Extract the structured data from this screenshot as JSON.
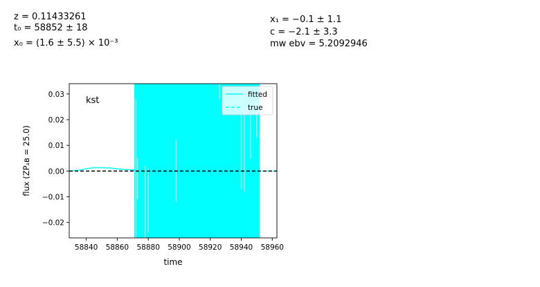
{
  "params": {
    "z": "z = 0.11433261",
    "t0": "t₀ = 58852 ± 18",
    "x0": "x₀ = (1.6 ± 5.5) × 10⁻³",
    "x1": "x₁ = −0.1 ± 1.1",
    "c": "c = −2.1 ± 3.3",
    "mwebv": "mw ebv = 5.2092946"
  },
  "chart_data": {
    "type": "line",
    "band_label": "kst",
    "xlabel": "time",
    "ylabel": "flux (ZPₐʙ = 25.0)",
    "xlim": [
      58829,
      58963
    ],
    "ylim": [
      -0.026,
      0.034
    ],
    "xticks": [
      58840,
      58860,
      58880,
      58900,
      58920,
      58940,
      58960
    ],
    "yticks": [
      -0.02,
      -0.01,
      0.0,
      0.01,
      0.02,
      0.03
    ],
    "ytick_labels": [
      "−0.02",
      "−0.01",
      "0.00",
      "0.01",
      "0.02",
      "0.03"
    ],
    "legend": {
      "placement": "top-right",
      "entries": [
        "fitted",
        "true"
      ]
    },
    "colors": {
      "model": "#00ffff",
      "zero_line": "#000000"
    },
    "zero_line": 0.0,
    "uncertainty_band": {
      "x_start": 58871,
      "x_end": 58952,
      "color": "#00ffff"
    },
    "series": [
      {
        "name": "fitted",
        "style": "solid",
        "x": [
          58829,
          58835,
          58840,
          58845,
          58850,
          58855,
          58860,
          58865,
          58871
        ],
        "y": [
          0.0,
          0.0003,
          0.0009,
          0.0013,
          0.0013,
          0.0012,
          0.0009,
          0.0006,
          0.0004
        ]
      },
      {
        "name": "true",
        "style": "dashed",
        "x": [
          58871,
          58963
        ],
        "y": [
          0.0,
          0.0
        ]
      }
    ],
    "error_bars": [
      {
        "x": 58872,
        "low": -0.026,
        "high": 0.028
      },
      {
        "x": 58873,
        "low": -0.011,
        "high": 0.005
      },
      {
        "x": 58878,
        "low": -0.026,
        "high": 0.002
      },
      {
        "x": 58880,
        "low": -0.024,
        "high": 0.001
      },
      {
        "x": 58898,
        "low": -0.012,
        "high": 0.012
      },
      {
        "x": 58926,
        "low": 0.028,
        "high": 0.034
      },
      {
        "x": 58940,
        "low": -0.007,
        "high": 0.022
      },
      {
        "x": 58942,
        "low": -0.008,
        "high": 0.024
      },
      {
        "x": 58946,
        "low": 0.005,
        "high": 0.022
      },
      {
        "x": 58950,
        "low": 0.013,
        "high": 0.027
      },
      {
        "x": 58952,
        "low": 0.014,
        "high": 0.015
      }
    ]
  }
}
